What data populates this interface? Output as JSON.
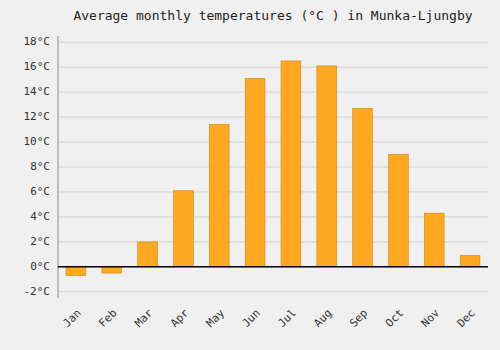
{
  "chart_data": {
    "type": "bar",
    "title": "Average monthly temperatures (°C ) in Munka-Ljungby",
    "categories": [
      "Jan",
      "Feb",
      "Mar",
      "Apr",
      "May",
      "Jun",
      "Jul",
      "Aug",
      "Sep",
      "Oct",
      "Nov",
      "Dec"
    ],
    "values": [
      -0.7,
      -0.5,
      2.0,
      6.1,
      11.4,
      15.1,
      16.5,
      16.1,
      12.7,
      9.0,
      4.3,
      0.9
    ],
    "color": "#FFA820",
    "ylim": [
      -2.5,
      18.5
    ],
    "yticks": [
      {
        "value": -2,
        "label": "-2°C"
      },
      {
        "value": 0,
        "label": "0°C"
      },
      {
        "value": 2,
        "label": "2°C"
      },
      {
        "value": 4,
        "label": "4°C"
      },
      {
        "value": 6,
        "label": "6°C"
      },
      {
        "value": 8,
        "label": "8°C"
      },
      {
        "value": 10,
        "label": "10°C"
      },
      {
        "value": 12,
        "label": "12°C"
      },
      {
        "value": 14,
        "label": "14°C"
      },
      {
        "value": 16,
        "label": "16°C"
      },
      {
        "value": 18,
        "label": "18°C"
      }
    ],
    "grid": true
  }
}
